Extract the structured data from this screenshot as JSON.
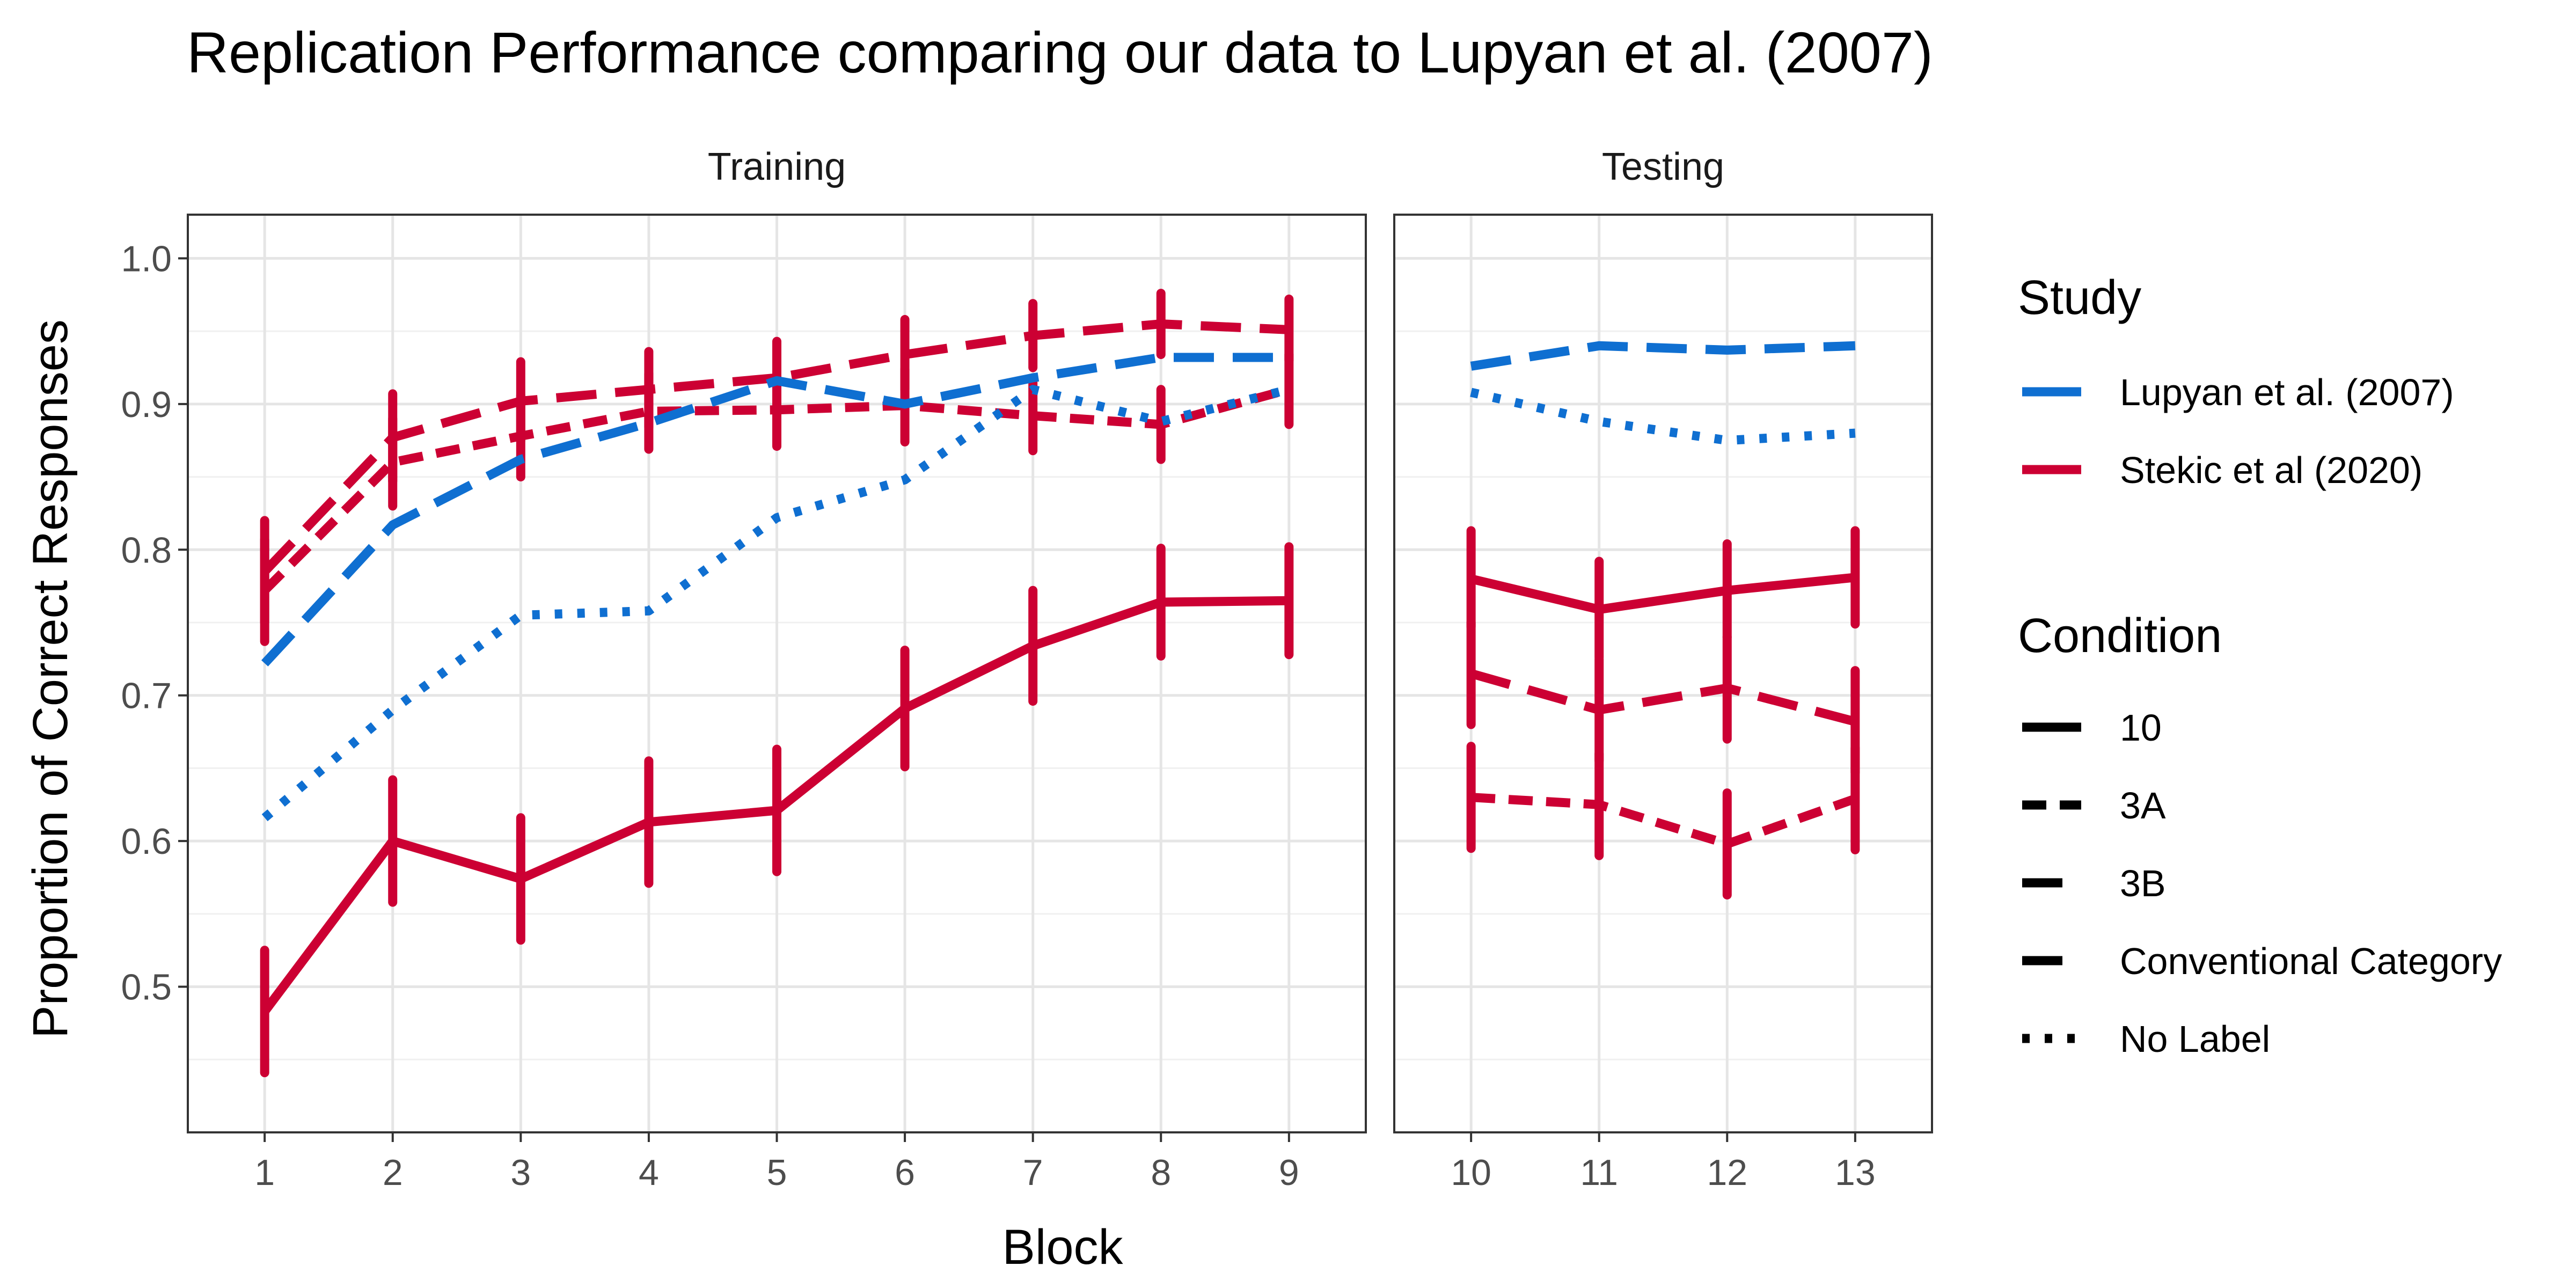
{
  "chart_data": {
    "type": "line",
    "title": "Replication Performance comparing our data to Lupyan et al. (2007)",
    "xlabel": "Block",
    "ylabel": "Proportion of Correct Responses",
    "ylim": [
      0.4,
      1.03
    ],
    "yticks": [
      0.5,
      0.6,
      0.7,
      0.8,
      0.9,
      1.0
    ],
    "ytick_labels": [
      "0.5",
      "0.6",
      "0.7",
      "0.8",
      "0.9",
      "1.0"
    ],
    "grid": true,
    "legend_position": "right",
    "colors": {
      "Lupyan et al. (2007)": "#0f6fd1",
      "Stekic et al (2020)": "#cc0033"
    },
    "panels": [
      {
        "strip": "Training",
        "xticks": [
          1,
          2,
          3,
          4,
          5,
          6,
          7,
          8,
          9
        ],
        "xlim": [
          0.4,
          9.6
        ]
      },
      {
        "strip": "Testing",
        "xticks": [
          10,
          11,
          12,
          13
        ],
        "xlim": [
          9.4,
          13.6
        ]
      }
    ],
    "legend": {
      "study_title": "Study",
      "study_items": [
        {
          "label": "Lupyan et al. (2007)",
          "color": "#0f6fd1"
        },
        {
          "label": "Stekic et al (2020)",
          "color": "#cc0033"
        }
      ],
      "condition_title": "Condition",
      "condition_items": [
        {
          "label": "10",
          "dash": "solid"
        },
        {
          "label": "3A",
          "dash": "short-dash"
        },
        {
          "label": "3B",
          "dash": "long-dash"
        },
        {
          "label": "Conventional Category",
          "dash": "long-dash"
        },
        {
          "label": "No Label",
          "dash": "dotted"
        }
      ]
    },
    "series": [
      {
        "study": "Stekic et al (2020)",
        "condition": "10",
        "panel": 0,
        "x": [
          1,
          2,
          3,
          4,
          5,
          6,
          7,
          8,
          9
        ],
        "y": [
          0.483,
          0.6,
          0.574,
          0.613,
          0.621,
          0.691,
          0.734,
          0.764,
          0.765
        ],
        "error": [
          0.042,
          0.042,
          0.042,
          0.042,
          0.042,
          0.04,
          0.038,
          0.037,
          0.037
        ]
      },
      {
        "study": "Stekic et al (2020)",
        "condition": "3A",
        "panel": 0,
        "x": [
          1,
          2,
          3,
          4,
          5,
          6,
          7,
          8,
          9
        ],
        "y": [
          0.772,
          0.86,
          0.878,
          0.895,
          0.896,
          0.899,
          0.892,
          0.886,
          0.91
        ],
        "error": [
          0.035,
          0.03,
          0.028,
          0.026,
          0.025,
          0.025,
          0.024,
          0.024,
          0.024
        ]
      },
      {
        "study": "Stekic et al (2020)",
        "condition": "3B",
        "panel": 0,
        "x": [
          1,
          2,
          3,
          4,
          5,
          6,
          7,
          8,
          9
        ],
        "y": [
          0.785,
          0.877,
          0.902,
          0.91,
          0.918,
          0.934,
          0.947,
          0.955,
          0.951
        ],
        "error": [
          0.035,
          0.03,
          0.027,
          0.026,
          0.025,
          0.024,
          0.022,
          0.021,
          0.021
        ]
      },
      {
        "study": "Lupyan et al. (2007)",
        "condition": "Conventional Category",
        "panel": 0,
        "x": [
          1,
          2,
          3,
          4,
          5,
          6,
          7,
          8,
          9
        ],
        "y": [
          0.722,
          0.817,
          0.862,
          0.887,
          0.916,
          0.9,
          0.918,
          0.932,
          0.932
        ]
      },
      {
        "study": "Lupyan et al. (2007)",
        "condition": "No Label",
        "panel": 0,
        "x": [
          1,
          2,
          3,
          4,
          5,
          6,
          7,
          8,
          9
        ],
        "y": [
          0.616,
          0.69,
          0.755,
          0.758,
          0.822,
          0.848,
          0.91,
          0.888,
          0.91
        ]
      },
      {
        "study": "Stekic et al (2020)",
        "condition": "10",
        "panel": 1,
        "x": [
          10,
          11,
          12,
          13
        ],
        "y": [
          0.78,
          0.759,
          0.772,
          0.781
        ],
        "error": [
          0.033,
          0.033,
          0.032,
          0.032
        ]
      },
      {
        "study": "Stekic et al (2020)",
        "condition": "3A",
        "panel": 1,
        "x": [
          10,
          11,
          12,
          13
        ],
        "y": [
          0.63,
          0.625,
          0.598,
          0.629
        ],
        "error": [
          0.035,
          0.035,
          0.035,
          0.035
        ]
      },
      {
        "study": "Stekic et al (2020)",
        "condition": "3B",
        "panel": 1,
        "x": [
          10,
          11,
          12,
          13
        ],
        "y": [
          0.715,
          0.69,
          0.705,
          0.682
        ],
        "error": [
          0.035,
          0.035,
          0.035,
          0.035
        ]
      },
      {
        "study": "Lupyan et al. (2007)",
        "condition": "Conventional Category",
        "panel": 1,
        "x": [
          10,
          11,
          12,
          13
        ],
        "y": [
          0.926,
          0.94,
          0.937,
          0.94
        ]
      },
      {
        "study": "Lupyan et al. (2007)",
        "condition": "No Label",
        "panel": 1,
        "x": [
          10,
          11,
          12,
          13
        ],
        "y": [
          0.908,
          0.888,
          0.875,
          0.88
        ]
      }
    ]
  }
}
